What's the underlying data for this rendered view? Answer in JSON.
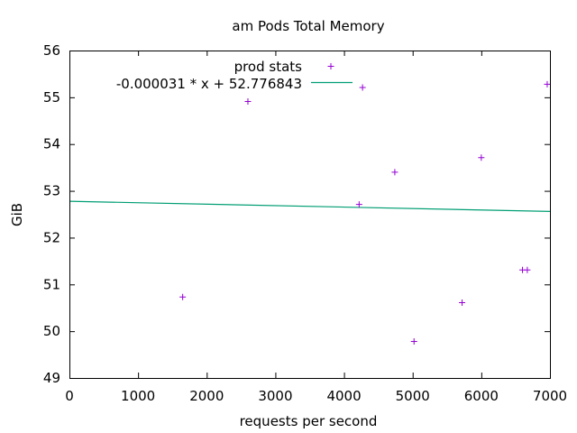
{
  "chart_data": {
    "type": "scatter",
    "title": "am Pods Total Memory",
    "xlabel": "requests per second",
    "ylabel": "GiB",
    "xlim": [
      0,
      7000
    ],
    "ylim": [
      49,
      56
    ],
    "x_ticks": [
      0,
      1000,
      2000,
      3000,
      4000,
      5000,
      6000,
      7000
    ],
    "y_ticks": [
      49,
      50,
      51,
      52,
      53,
      54,
      55,
      56
    ],
    "grid": false,
    "legend_position": "top-center",
    "colors": {
      "points": "#9400d3",
      "fit": "#009e73"
    },
    "series": [
      {
        "name": "prod stats",
        "kind": "points",
        "marker": "+",
        "points": [
          {
            "x": 1650,
            "y": 50.73
          },
          {
            "x": 2600,
            "y": 54.91
          },
          {
            "x": 4220,
            "y": 52.71
          },
          {
            "x": 4270,
            "y": 55.21
          },
          {
            "x": 4740,
            "y": 53.4
          },
          {
            "x": 5020,
            "y": 49.78
          },
          {
            "x": 5720,
            "y": 50.61
          },
          {
            "x": 6000,
            "y": 53.71
          },
          {
            "x": 6600,
            "y": 51.31
          },
          {
            "x": 6670,
            "y": 51.31
          },
          {
            "x": 6960,
            "y": 55.28
          }
        ]
      },
      {
        "name": "-0.000031 * x + 52.776843",
        "kind": "line",
        "slope": -3.1e-05,
        "intercept": 52.776843,
        "x_range": [
          0,
          7000
        ]
      }
    ]
  }
}
